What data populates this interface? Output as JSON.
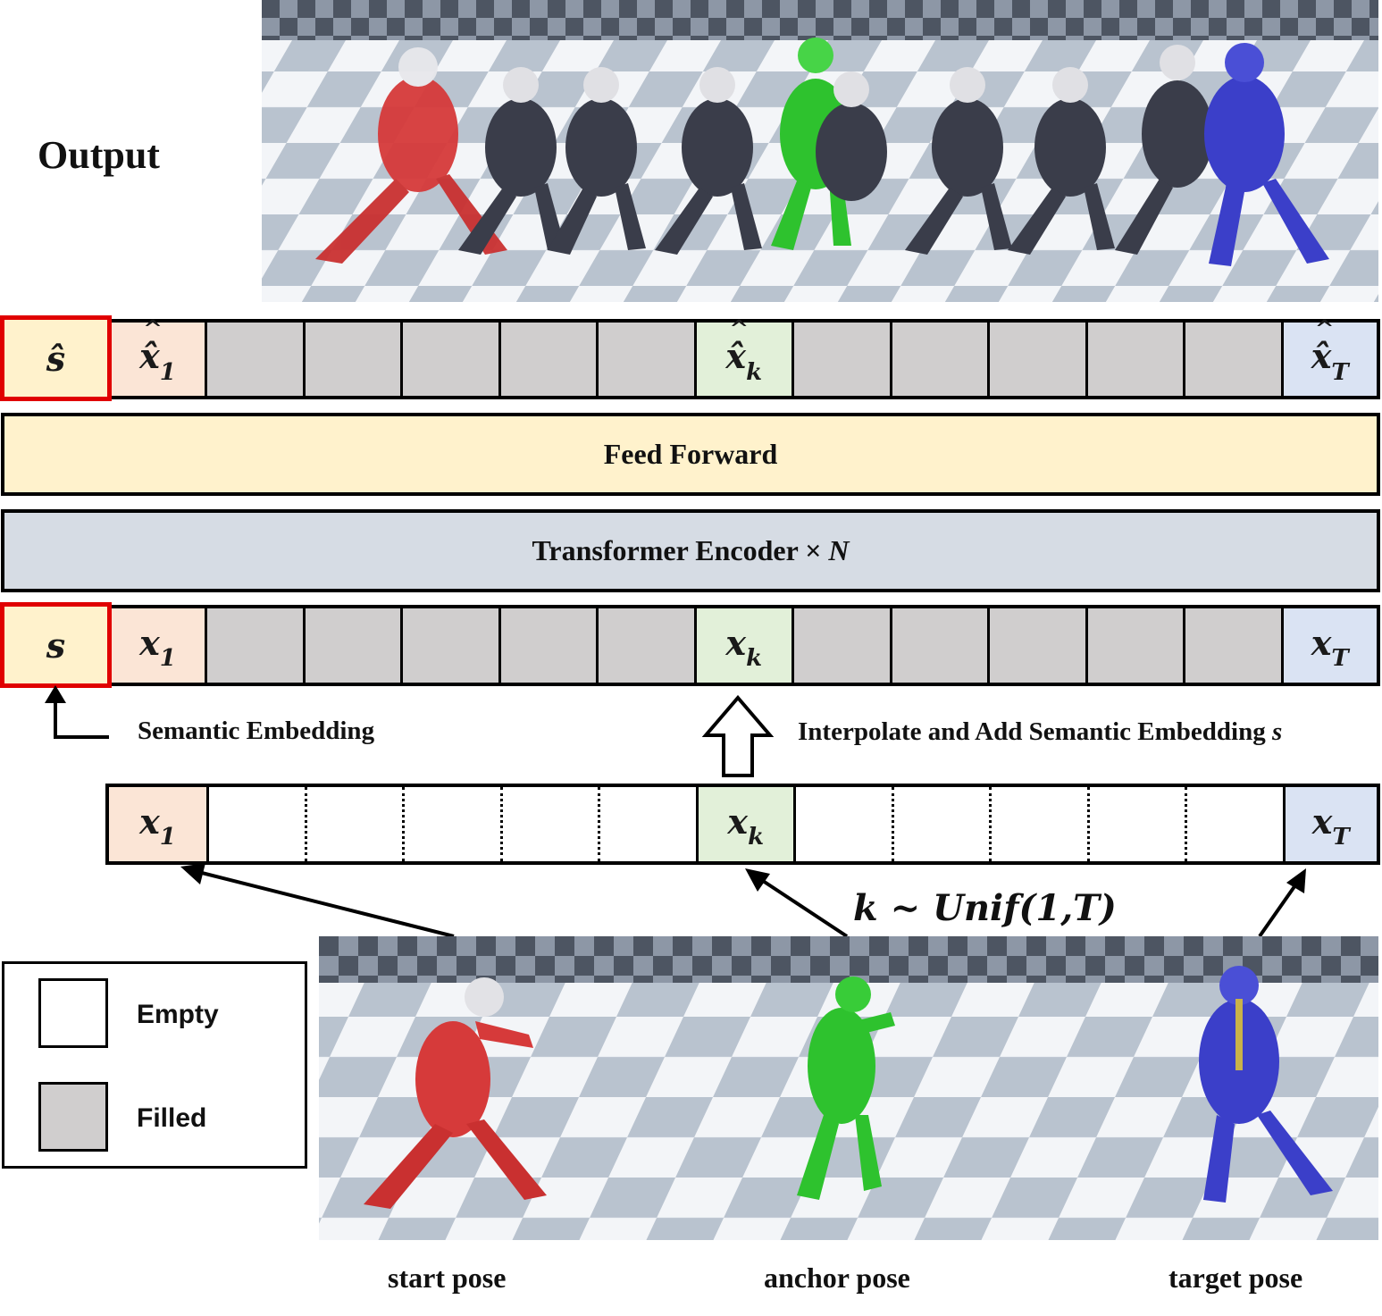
{
  "output_label": "Output",
  "output_tokens": {
    "semantic": "ŝ",
    "first": "x̂",
    "first_sub": "1",
    "anchor": "x̂",
    "anchor_sub": "k",
    "last": "x̂",
    "last_sub": "T"
  },
  "feed_forward_label": "Feed Forward",
  "encoder_label": "Transformer Encoder × ",
  "encoder_n": "N",
  "input_tokens": {
    "semantic": "s",
    "first": "x",
    "first_sub": "1",
    "anchor": "x",
    "anchor_sub": "k",
    "last": "x",
    "last_sub": "T"
  },
  "semantic_embedding_label": "Semantic Embedding",
  "interpolate_label": "Interpolate and Add Semantic Embedding ",
  "interpolate_symbol": "s",
  "sampling_label": "k ~ Unif(1,T)",
  "legend": {
    "empty": "Empty",
    "filled": "Filled"
  },
  "pose_captions": {
    "start": "start pose",
    "anchor": "anchor pose",
    "target": "target pose"
  },
  "colors": {
    "start_pose": "#d63a3a",
    "anchor_pose": "#2ec22e",
    "target_pose": "#3b3fc9",
    "intermediate_pose": "#3a3d4a",
    "highlight_border": "#e00000"
  }
}
